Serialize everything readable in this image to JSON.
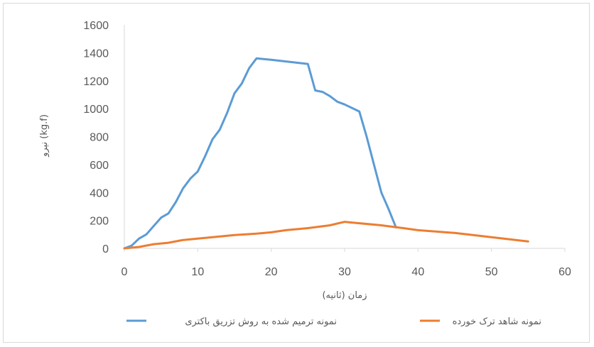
{
  "chart_data": {
    "type": "line",
    "title": "",
    "xlabel": "زمان (ثانیه)",
    "ylabel": "نیرو (kg.f)",
    "xlim": [
      0,
      60
    ],
    "ylim": [
      0,
      1600
    ],
    "x_ticks": [
      0,
      10,
      20,
      30,
      40,
      50,
      60
    ],
    "y_ticks": [
      0,
      200,
      400,
      600,
      800,
      1000,
      1200,
      1400,
      1600
    ],
    "grid": false,
    "legend_position": "bottom",
    "series": [
      {
        "name": "نمونه ترمیم شده به روش تزریق باکتری",
        "color": "#5b9bd5",
        "points": [
          [
            0,
            0
          ],
          [
            1,
            20
          ],
          [
            2,
            70
          ],
          [
            3,
            100
          ],
          [
            4,
            160
          ],
          [
            5,
            220
          ],
          [
            6,
            250
          ],
          [
            7,
            330
          ],
          [
            8,
            430
          ],
          [
            9,
            500
          ],
          [
            10,
            550
          ],
          [
            11,
            660
          ],
          [
            12,
            780
          ],
          [
            13,
            850
          ],
          [
            14,
            970
          ],
          [
            15,
            1110
          ],
          [
            16,
            1180
          ],
          [
            17,
            1290
          ],
          [
            18,
            1360
          ],
          [
            20,
            1350
          ],
          [
            25,
            1320
          ],
          [
            26,
            1130
          ],
          [
            27,
            1120
          ],
          [
            28,
            1090
          ],
          [
            29,
            1050
          ],
          [
            30,
            1030
          ],
          [
            32,
            980
          ],
          [
            33,
            800
          ],
          [
            34,
            600
          ],
          [
            35,
            400
          ],
          [
            36,
            280
          ],
          [
            37,
            150
          ]
        ]
      },
      {
        "name": "نمونه شاهد ترک خورده",
        "color": "#ed7d31",
        "points": [
          [
            0,
            0
          ],
          [
            2,
            10
          ],
          [
            4,
            30
          ],
          [
            6,
            40
          ],
          [
            8,
            60
          ],
          [
            10,
            70
          ],
          [
            12,
            80
          ],
          [
            15,
            95
          ],
          [
            18,
            105
          ],
          [
            20,
            115
          ],
          [
            22,
            130
          ],
          [
            25,
            145
          ],
          [
            28,
            165
          ],
          [
            30,
            190
          ],
          [
            32,
            180
          ],
          [
            35,
            165
          ],
          [
            38,
            145
          ],
          [
            40,
            130
          ],
          [
            45,
            110
          ],
          [
            50,
            80
          ],
          [
            55,
            50
          ]
        ]
      }
    ]
  }
}
